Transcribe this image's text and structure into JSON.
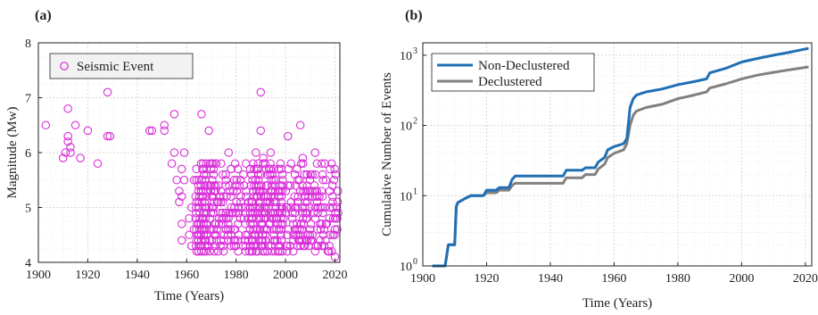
{
  "chart_data": [
    {
      "type": "scatter",
      "panel_label": "(a)",
      "title": "",
      "xlabel": "Time (Years)",
      "ylabel": "Magnitude (Mw)",
      "xlim": [
        1900,
        2022
      ],
      "ylim": [
        4,
        8
      ],
      "xticks": [
        1900,
        1920,
        1940,
        1960,
        1980,
        2000,
        2020
      ],
      "yticks": [
        4,
        5,
        6,
        7,
        8
      ],
      "grid": true,
      "legend_position": "top-left",
      "marker_color": "#d92ed9",
      "series": [
        {
          "name": "Seismic Event",
          "points": [
            [
              1903,
              6.5
            ],
            [
              1910,
              5.9
            ],
            [
              1911,
              6.0
            ],
            [
              1912,
              6.8
            ],
            [
              1912,
              6.3
            ],
            [
              1912,
              6.2
            ],
            [
              1913,
              6.1
            ],
            [
              1913,
              6.0
            ],
            [
              1915,
              6.5
            ],
            [
              1917,
              5.9
            ],
            [
              1920,
              6.4
            ],
            [
              1924,
              5.8
            ],
            [
              1928,
              7.1
            ],
            [
              1928,
              6.3
            ],
            [
              1929,
              6.3
            ],
            [
              1945,
              6.4
            ],
            [
              1946,
              6.4
            ],
            [
              1951,
              6.5
            ],
            [
              1951,
              6.4
            ],
            [
              1954,
              5.8
            ],
            [
              1955,
              6.7
            ],
            [
              1955,
              6.0
            ],
            [
              1956,
              5.5
            ],
            [
              1957,
              5.3
            ],
            [
              1957,
              5.1
            ],
            [
              1958,
              5.2
            ],
            [
              1958,
              5.7
            ],
            [
              1958,
              4.7
            ],
            [
              1958,
              4.4
            ],
            [
              1959,
              6.0
            ],
            [
              1959,
              5.5
            ],
            [
              1961,
              4.8
            ],
            [
              1961,
              4.5
            ],
            [
              1962,
              5.0
            ],
            [
              1962,
              4.3
            ],
            [
              1963,
              5.5
            ],
            [
              1963,
              4.6
            ],
            [
              1966,
              6.7
            ],
            [
              1969,
              6.4
            ],
            [
              1972,
              5.8
            ],
            [
              1977,
              6.0
            ],
            [
              1978,
              5.7
            ],
            [
              1984,
              5.8
            ],
            [
              1988,
              6.0
            ],
            [
              1990,
              7.1
            ],
            [
              1990,
              6.4
            ],
            [
              1991,
              5.9
            ],
            [
              1994,
              6.0
            ],
            [
              2001,
              6.3
            ],
            [
              2006,
              6.5
            ],
            [
              2007,
              5.9
            ],
            [
              2012,
              6.0
            ],
            [
              2015,
              5.6
            ],
            [
              2018,
              5.7
            ],
            [
              2020,
              4.1
            ]
          ],
          "dense_region": {
            "x_range": [
              1964,
              2021
            ],
            "y_range": [
              4.2,
              5.8
            ],
            "y_step": 0.1,
            "x_step": 1
          }
        }
      ]
    },
    {
      "type": "line",
      "panel_label": "(b)",
      "title": "",
      "xlabel": "Time (Years)",
      "ylabel": "Cumulative Number of Events",
      "xlim": [
        1900,
        2022
      ],
      "ylim": [
        1,
        1500
      ],
      "yscale": "log",
      "xticks": [
        1900,
        1920,
        1940,
        1960,
        1980,
        2000,
        2020
      ],
      "yticks": [
        1,
        10,
        100,
        1000
      ],
      "ytick_labels": [
        "10",
        "10",
        "10",
        "10"
      ],
      "ytick_exponents": [
        "0",
        "1",
        "2",
        "3"
      ],
      "grid": true,
      "legend_position": "top-left",
      "series": [
        {
          "name": "Non-Declustered",
          "color": "#1f6fb5",
          "points": [
            [
              1903,
              1
            ],
            [
              1907,
              1
            ],
            [
              1908,
              2
            ],
            [
              1910,
              2
            ],
            [
              1910.5,
              7
            ],
            [
              1911,
              8
            ],
            [
              1913,
              9
            ],
            [
              1915,
              10
            ],
            [
              1919,
              10
            ],
            [
              1920,
              12
            ],
            [
              1923,
              12
            ],
            [
              1924,
              13
            ],
            [
              1927,
              13
            ],
            [
              1928,
              17
            ],
            [
              1929,
              19
            ],
            [
              1944,
              19
            ],
            [
              1945,
              23
            ],
            [
              1950,
              23
            ],
            [
              1951,
              25
            ],
            [
              1954,
              25
            ],
            [
              1955,
              30
            ],
            [
              1957,
              35
            ],
            [
              1958,
              45
            ],
            [
              1960,
              50
            ],
            [
              1963,
              55
            ],
            [
              1964,
              65
            ],
            [
              1965,
              180
            ],
            [
              1966,
              240
            ],
            [
              1967,
              270
            ],
            [
              1970,
              300
            ],
            [
              1975,
              330
            ],
            [
              1980,
              380
            ],
            [
              1985,
              420
            ],
            [
              1989,
              460
            ],
            [
              1990,
              560
            ],
            [
              1995,
              650
            ],
            [
              2000,
              800
            ],
            [
              2005,
              900
            ],
            [
              2010,
              1000
            ],
            [
              2015,
              1100
            ],
            [
              2021,
              1250
            ]
          ]
        },
        {
          "name": "Declustered",
          "color": "#808080",
          "points": [
            [
              1903,
              1
            ],
            [
              1907,
              1
            ],
            [
              1908,
              2
            ],
            [
              1910,
              2
            ],
            [
              1910.5,
              7
            ],
            [
              1911,
              8
            ],
            [
              1913,
              9
            ],
            [
              1915,
              10
            ],
            [
              1919,
              10
            ],
            [
              1920,
              11
            ],
            [
              1923,
              11
            ],
            [
              1924,
              12
            ],
            [
              1927,
              12
            ],
            [
              1928,
              14
            ],
            [
              1929,
              15
            ],
            [
              1944,
              15
            ],
            [
              1945,
              18
            ],
            [
              1950,
              18
            ],
            [
              1951,
              20
            ],
            [
              1954,
              20
            ],
            [
              1955,
              24
            ],
            [
              1957,
              28
            ],
            [
              1958,
              35
            ],
            [
              1960,
              40
            ],
            [
              1963,
              45
            ],
            [
              1964,
              55
            ],
            [
              1965,
              100
            ],
            [
              1966,
              140
            ],
            [
              1967,
              160
            ],
            [
              1970,
              180
            ],
            [
              1975,
              200
            ],
            [
              1980,
              240
            ],
            [
              1985,
              270
            ],
            [
              1989,
              300
            ],
            [
              1990,
              340
            ],
            [
              1995,
              390
            ],
            [
              2000,
              460
            ],
            [
              2005,
              520
            ],
            [
              2010,
              570
            ],
            [
              2015,
              620
            ],
            [
              2021,
              680
            ]
          ]
        }
      ]
    }
  ]
}
